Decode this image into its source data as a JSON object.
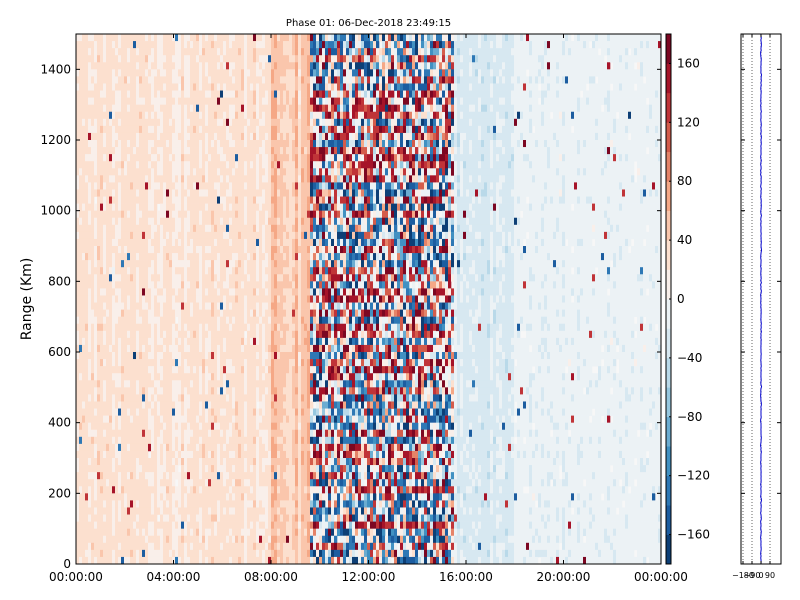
{
  "chart_data": [
    {
      "type": "heatmap",
      "title": "Phase 01: 06-Dec-2018 23:49:15",
      "ylabel": "Range (Km)",
      "xlabel": "",
      "x_ticks": [
        "00:00:00",
        "04:00:00",
        "08:00:00",
        "12:00:00",
        "16:00:00",
        "20:00:00",
        "00:00:00"
      ],
      "x_range_hours": [
        0,
        24
      ],
      "y_ticks": [
        0,
        200,
        400,
        600,
        800,
        1000,
        1200,
        1400
      ],
      "ylim": [
        0,
        1500
      ],
      "grid": false,
      "colormap": "RdBu_r",
      "colorbar": {
        "ticks": [
          -160,
          -120,
          -80,
          -40,
          0,
          40,
          80,
          120,
          160
        ],
        "labels": [
          "−160",
          "−120",
          "−80",
          "−40",
          "0",
          "40",
          "80",
          "120",
          "160"
        ],
        "range": [
          -180,
          180
        ],
        "levels": 18
      },
      "phase_profile_hours": [
        {
          "start": 0,
          "end": 8,
          "phase": 25
        },
        {
          "start": 8,
          "end": 9.6,
          "phase": 45
        },
        {
          "start": 9.6,
          "end": 15.5,
          "phase": 0
        },
        {
          "start": 15.5,
          "end": 18,
          "phase": -25
        },
        {
          "start": 18,
          "end": 24,
          "phase": -12
        }
      ],
      "noisy_window_hours": [
        9.6,
        15.5
      ]
    },
    {
      "type": "line",
      "x_ticks": [
        -180,
        -90,
        0,
        90
      ],
      "x_tick_labels": [
        "−180",
        "−90",
        "0",
        "90"
      ],
      "xlim": [
        -200,
        200
      ],
      "y_range": [
        0,
        1500
      ],
      "series_color": "#0000cc",
      "mean_value": 0
    }
  ]
}
